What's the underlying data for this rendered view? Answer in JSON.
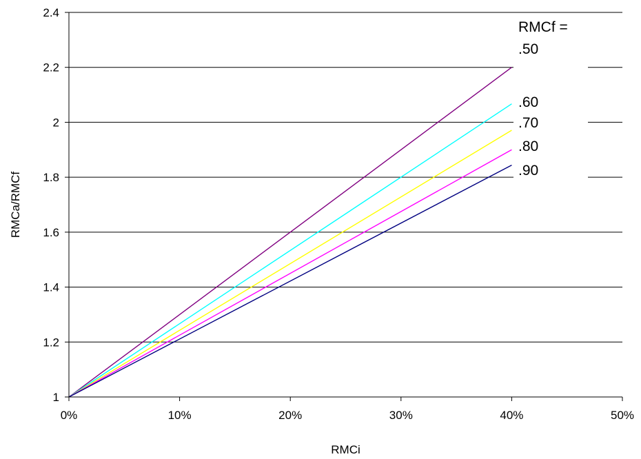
{
  "chart_data": {
    "type": "line",
    "title": "",
    "xlabel": "RMCi",
    "ylabel": "RMCa/RMCf",
    "xlim": [
      0,
      0.5
    ],
    "ylim": [
      1,
      2.4
    ],
    "x_ticks": [
      0,
      0.1,
      0.2,
      0.3,
      0.4,
      0.5
    ],
    "x_tick_labels": [
      "0%",
      "10%",
      "20%",
      "30%",
      "40%",
      "50%"
    ],
    "y_ticks": [
      1,
      1.2,
      1.4,
      1.6,
      1.8,
      2,
      2.2,
      2.4
    ],
    "y_tick_labels": [
      "1",
      "1.2",
      "1.4",
      "1.6",
      "1.8",
      "2",
      "2.2",
      "2.4"
    ],
    "grid": "horizontal",
    "legend_title": "RMCf =",
    "x": [
      0,
      0.4
    ],
    "series": [
      {
        "name": ".50",
        "values": [
          1,
          2.2
        ],
        "color": "#800080"
      },
      {
        "name": ".60",
        "values": [
          1,
          2.067
        ],
        "color": "#00FFFF"
      },
      {
        "name": ".70",
        "values": [
          1,
          1.971
        ],
        "color": "#FFFF00"
      },
      {
        "name": ".80",
        "values": [
          1,
          1.9
        ],
        "color": "#FF00FF"
      },
      {
        "name": ".90",
        "values": [
          1,
          1.844
        ],
        "color": "#000080"
      }
    ]
  }
}
